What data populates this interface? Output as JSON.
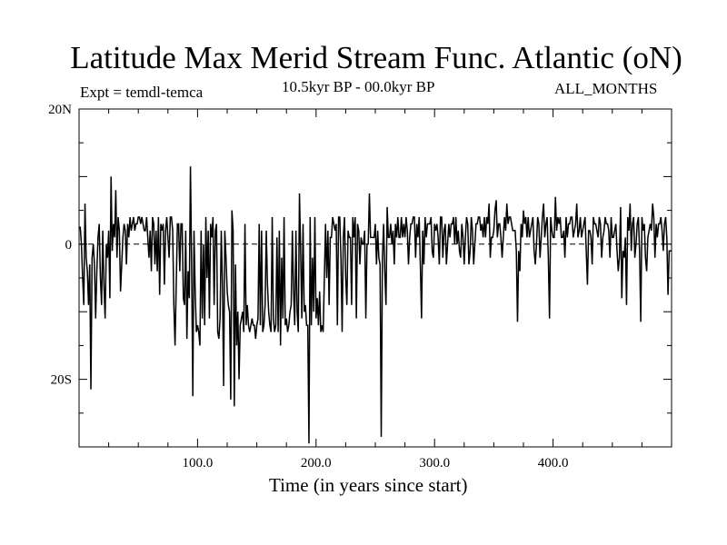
{
  "chart_data": {
    "type": "line",
    "title": "Latitude Max Merid Stream Func. Atlantic (oN)",
    "experiment": "Expt = temdl-temca",
    "period": "10.5kyr BP - 00.0kyr BP",
    "months": "ALL_MONTHS",
    "xlabel": "Time (in years since start)",
    "ylabel": "",
    "xlim": [
      0,
      500
    ],
    "ylim": [
      -30,
      20
    ],
    "x_ticks": [
      {
        "value": 100,
        "label": "100.0"
      },
      {
        "value": 200,
        "label": "200.0"
      },
      {
        "value": 300,
        "label": "300.0"
      },
      {
        "value": 400,
        "label": "400.0"
      }
    ],
    "y_ticks": [
      {
        "value": 20,
        "label": "20N"
      },
      {
        "value": 0,
        "label": "0"
      },
      {
        "value": -20,
        "label": "20S"
      }
    ],
    "zero_line": "dashed",
    "grid": false,
    "series": [
      {
        "step": 1,
        "x_start": 0,
        "values": [
          2.5,
          2.5,
          0,
          -5,
          -9,
          6,
          -2,
          -4,
          -9,
          -3,
          -21.5,
          -2,
          0,
          -3,
          -11,
          -4,
          1,
          3,
          -5,
          -9,
          2,
          -6,
          -11,
          0,
          -2,
          2,
          -8,
          10,
          -1,
          3,
          1,
          8,
          -2,
          4,
          2,
          -7,
          -3,
          1,
          3,
          2,
          -3,
          3,
          1,
          4,
          2,
          3,
          4,
          2,
          3,
          3,
          4,
          4,
          3,
          4,
          3,
          2,
          2,
          4,
          1,
          -2,
          2,
          -4,
          4,
          3,
          -3,
          2,
          -4,
          4,
          -7.5,
          3,
          2,
          3,
          -6,
          2,
          4,
          1,
          -2,
          4,
          4,
          2,
          -9,
          -15,
          -6,
          3,
          3,
          -4,
          3,
          3,
          -8,
          -9,
          2,
          -14,
          -4,
          -8,
          11.5,
          -3,
          -22.5,
          2,
          -7,
          -13,
          -12,
          -13,
          -15,
          2,
          -11,
          0,
          -12,
          4,
          -5,
          2,
          -11,
          3,
          1,
          4,
          -9,
          2,
          3,
          -13,
          -14,
          -11,
          2,
          -6,
          -21,
          2,
          -2,
          -7,
          -9,
          -10,
          -23,
          5,
          2,
          -24,
          -3,
          -15,
          -10,
          -20,
          -12,
          -11,
          -10,
          -13,
          3,
          -12,
          -9,
          -12,
          -13,
          -12,
          -11,
          -12,
          -12,
          -14,
          -12,
          -11,
          3,
          -12,
          2,
          -13,
          -12,
          -9,
          2,
          -6,
          -10,
          -12,
          -13,
          4,
          -11,
          -13,
          -12,
          1,
          -13,
          2,
          -15,
          -2,
          -11,
          4,
          -12,
          -11,
          -13,
          -12,
          -10,
          -9,
          2,
          -7,
          -12,
          2,
          -10,
          -13,
          7.5,
          -1,
          -11,
          3,
          -10,
          -9,
          -12,
          -12,
          -29.5,
          4,
          -12,
          -2,
          -10,
          4,
          -11,
          -8,
          -12,
          -7,
          -13,
          -12,
          -13,
          -5,
          3,
          -5,
          2,
          -9,
          1,
          1,
          4,
          3,
          2,
          3,
          -12,
          4,
          4,
          -2,
          -13,
          1,
          4,
          -5,
          -9,
          2,
          1,
          1,
          -9,
          4,
          1,
          4,
          -11,
          3,
          2,
          -3,
          1,
          0,
          0,
          2,
          -11,
          0,
          0,
          7.5,
          1,
          1,
          1,
          1,
          3,
          -3,
          2,
          -2,
          -3,
          -28.5,
          -2,
          3,
          -4,
          -9,
          5.5,
          1,
          1,
          3,
          0,
          2,
          -3,
          3,
          1,
          4,
          1,
          1,
          4,
          1,
          3,
          1,
          4,
          2,
          -3,
          1,
          3,
          3,
          4,
          4,
          -2,
          3,
          1,
          4,
          -3,
          -11,
          2,
          -3,
          4,
          1,
          3,
          3,
          3,
          4,
          -1,
          -2,
          3,
          2,
          3,
          1,
          -3,
          4,
          4,
          -2,
          2,
          3,
          -3,
          0,
          3,
          1,
          3,
          3,
          4,
          0,
          4,
          0,
          2,
          -1,
          -2,
          3,
          1,
          -3,
          1,
          4,
          3,
          -3,
          -1,
          4,
          2,
          -3,
          0,
          3,
          3,
          4,
          4,
          2,
          3,
          1,
          4,
          1,
          4,
          3,
          6,
          -2,
          1,
          1,
          2,
          5,
          6.5,
          1,
          3,
          3,
          1,
          -2,
          1,
          4,
          2,
          6,
          3,
          4,
          4,
          3,
          2,
          2,
          2,
          -1,
          -11.5,
          -1,
          -4,
          3,
          1,
          5,
          3,
          4,
          1,
          4,
          1,
          2,
          3,
          4,
          -1,
          -3,
          0,
          4,
          3,
          -2,
          1,
          4,
          6,
          1,
          3,
          4,
          -2,
          -11,
          4,
          2,
          1,
          1,
          7,
          2,
          4,
          3,
          4,
          1,
          1,
          2,
          -2,
          4,
          1,
          3,
          3,
          4,
          4,
          1,
          2,
          3,
          6,
          1,
          2,
          4,
          1,
          2,
          3,
          4,
          -1,
          -6,
          2,
          2,
          1,
          -3,
          4,
          3,
          3,
          2,
          1,
          4,
          3,
          -2,
          1,
          2,
          4,
          3,
          3,
          2,
          -2,
          4,
          1,
          1,
          2,
          3,
          -1,
          -4,
          -2,
          5.5,
          -8,
          -1,
          -2,
          1,
          -9,
          4,
          2,
          6,
          -1,
          3,
          4,
          -2,
          0,
          3,
          4,
          -1,
          -11.5,
          4,
          2,
          3,
          -2,
          -4,
          1,
          2,
          3,
          2,
          6,
          4,
          -2,
          3,
          1,
          3,
          3,
          4,
          2,
          -1,
          3,
          4,
          1,
          -7.5,
          -1,
          -1,
          -1
        ]
      }
    ]
  }
}
